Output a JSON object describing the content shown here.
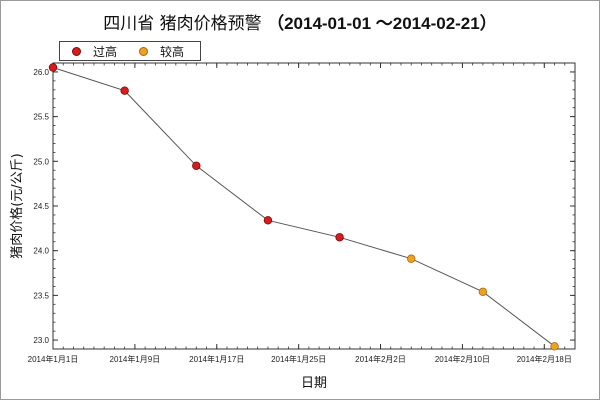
{
  "chart_data": {
    "type": "scatter",
    "title_main": "四川省 猪肉价格预警",
    "title_range": "（2014-01-01 ～2014-02-21）",
    "xlabel": "日期",
    "ylabel": "猪肉价格(元/公斤)",
    "ylim": [
      22.9,
      26.1
    ],
    "yticks": [
      "23.0",
      "23.5",
      "24.0",
      "24.5",
      "25.0",
      "25.5",
      "26.0"
    ],
    "x_ticks": [
      {
        "date": "2014-01-01",
        "label": "2014年1月1日"
      },
      {
        "date": "2014-01-09",
        "label": "2014年1月9日"
      },
      {
        "date": "2014-01-17",
        "label": "2014年1月17日"
      },
      {
        "date": "2014-01-25",
        "label": "2014年1月25日"
      },
      {
        "date": "2014-02-02",
        "label": "2014年2月2日"
      },
      {
        "date": "2014-02-10",
        "label": "2014年2月10日"
      },
      {
        "date": "2014-02-18",
        "label": "2014年2月18日"
      }
    ],
    "xlim": [
      "2014-01-01",
      "2014-02-21"
    ],
    "grid": false,
    "legend_position": "top-left",
    "legend": [
      {
        "label": "过高",
        "color": "#d81b1b"
      },
      {
        "label": "较高",
        "color": "#f0a11e"
      }
    ],
    "points": [
      {
        "date": "2014-01-01",
        "value": 26.05,
        "level": "过高"
      },
      {
        "date": "2014-01-08",
        "value": 25.79,
        "level": "过高"
      },
      {
        "date": "2014-01-15",
        "value": 24.95,
        "level": "过高"
      },
      {
        "date": "2014-01-22",
        "value": 24.34,
        "level": "过高"
      },
      {
        "date": "2014-01-29",
        "value": 24.15,
        "level": "过高"
      },
      {
        "date": "2014-02-05",
        "value": 23.91,
        "level": "较高"
      },
      {
        "date": "2014-02-12",
        "value": 23.54,
        "level": "较高"
      },
      {
        "date": "2014-02-19",
        "value": 22.93,
        "level": "较高"
      }
    ],
    "line_color": "#555555"
  }
}
